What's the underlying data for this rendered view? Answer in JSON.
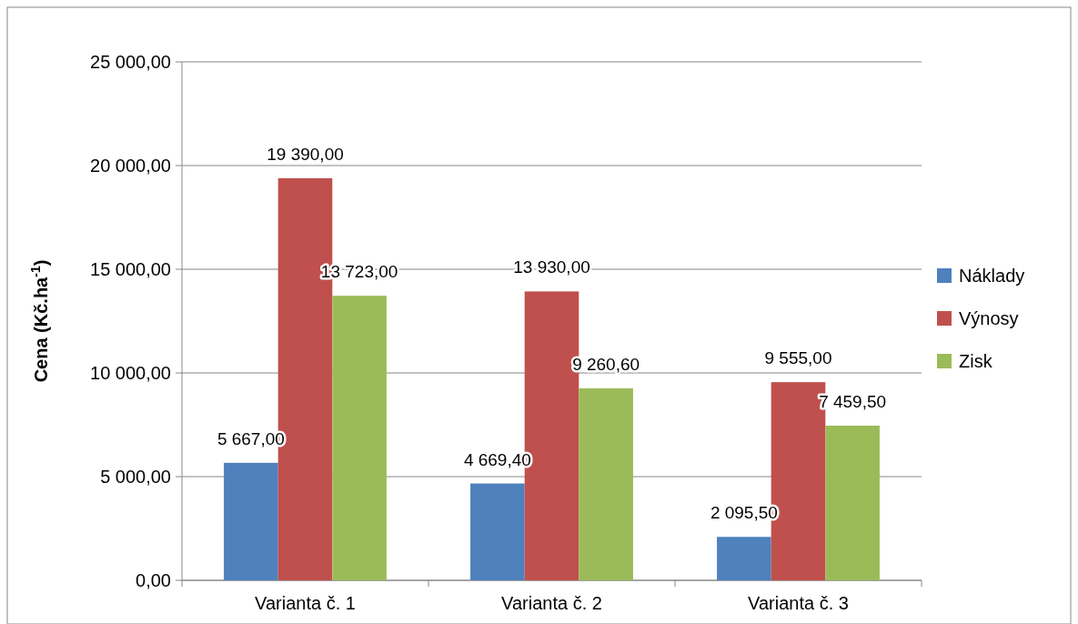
{
  "chart_data": {
    "type": "bar",
    "ylabel": "Cena (Kč.ha$^{-1}$)",
    "categories": [
      "Varianta č. 1",
      "Varianta č. 2",
      "Varianta č. 3"
    ],
    "series": [
      {
        "name": "Náklady",
        "color": "#4f81bd",
        "values": [
          5667,
          4669.4,
          2095.5
        ],
        "value_labels": [
          "5 667,00",
          "4 669,40",
          "2 095,50"
        ]
      },
      {
        "name": "Výnosy",
        "color": "#c0504d",
        "values": [
          19390,
          13930,
          9555
        ],
        "value_labels": [
          "19 390,00",
          "13 930,00",
          "9 555,00"
        ]
      },
      {
        "name": "Zisk",
        "color": "#9bbb59",
        "values": [
          13723,
          9260.6,
          7459.5
        ],
        "value_labels": [
          "13 723,00",
          "9 260,60",
          "7 459,50"
        ]
      }
    ],
    "ylim": [
      0,
      25000
    ],
    "yticks": [
      {
        "value": 0,
        "label": "0,00"
      },
      {
        "value": 5000,
        "label": "5 000,00"
      },
      {
        "value": 10000,
        "label": "10 000,00"
      },
      {
        "value": 15000,
        "label": "15 000,00"
      },
      {
        "value": 20000,
        "label": "20 000,00"
      },
      {
        "value": 25000,
        "label": "25 000,00"
      }
    ],
    "grid": "y",
    "legend": "right"
  }
}
